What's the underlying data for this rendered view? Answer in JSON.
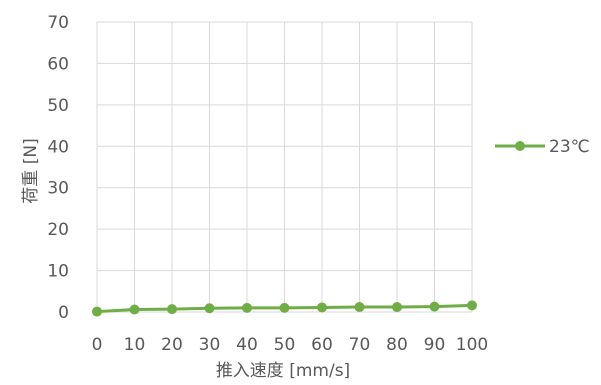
{
  "chart_data": {
    "type": "line",
    "title": "",
    "xlabel": "推入速度 [mm/s]",
    "ylabel": "荷重 [N]",
    "x": [
      0,
      10,
      20,
      30,
      40,
      50,
      60,
      70,
      80,
      90,
      100
    ],
    "series": [
      {
        "name": "23℃",
        "values": [
          0.1,
          0.6,
          0.7,
          0.9,
          1.0,
          1.0,
          1.1,
          1.2,
          1.2,
          1.3,
          1.6
        ],
        "color": "#70ad47"
      }
    ],
    "xlim": [
      0,
      100
    ],
    "ylim": [
      0,
      70
    ],
    "xticks": [
      0,
      10,
      20,
      30,
      40,
      50,
      60,
      70,
      80,
      90,
      100
    ],
    "yticks": [
      0,
      10,
      20,
      30,
      40,
      50,
      60,
      70
    ],
    "grid": true,
    "legend_position": "right",
    "colors": {
      "grid": "#d9d9d9",
      "text": "#595959"
    }
  }
}
